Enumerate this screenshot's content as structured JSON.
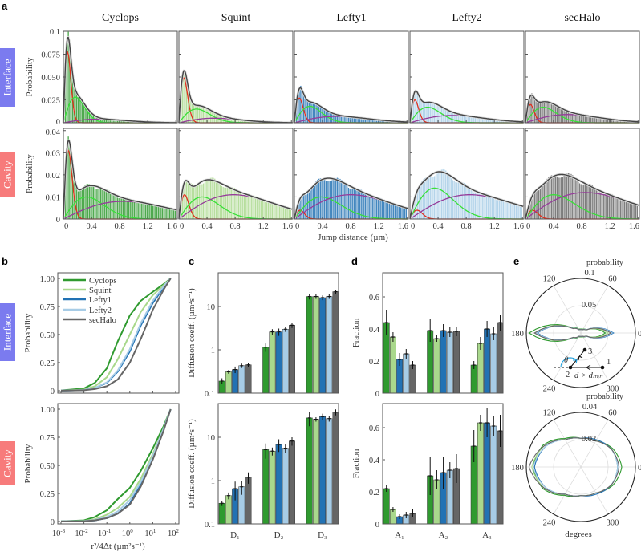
{
  "figure": {
    "panel_labels": {
      "a": "a",
      "b": "b",
      "c": "c",
      "d": "d",
      "e": "e"
    },
    "row_labels": {
      "interface": "Interface",
      "cavity": "Cavity"
    }
  },
  "colors": {
    "Cyclops": "#2f9a2f",
    "Squint": "#a9d88c",
    "Lefty1": "#2272b4",
    "Lefty2": "#a7cce6",
    "secHalo": "#666666",
    "interface_badge": "#7b7bef",
    "cavity_badge": "#f77b7b",
    "component_fast": "#e2301f",
    "component_mid": "#38e038",
    "component_slow": "#953c9a",
    "fit_total": "#444444",
    "angle_marker": "#1aa0e0"
  },
  "chart_data": [
    {
      "panel": "a",
      "type": "bar",
      "subtype": "histogram with 3-component fit",
      "columns": [
        "Cyclops",
        "Squint",
        "Lefty1",
        "Lefty2",
        "secHalo"
      ],
      "xlabel": "Jump distance (µm)",
      "ylabel": "Probability",
      "xlim": [
        0,
        1.62
      ],
      "xticks": [
        "0",
        "0.4",
        "0.8",
        "1.2",
        "1.6"
      ],
      "rows": [
        {
          "label": "Interface",
          "ylim": [
            0,
            0.1
          ],
          "yticks": [
            "0",
            "0.025",
            "0.050",
            "0.075",
            "0.1"
          ],
          "fits": [
            {
              "protein": "Cyclops",
              "components": [
                {
                  "mode": 0.06,
                  "peak": 0.077
                },
                {
                  "mode": 0.17,
                  "peak": 0.028
                },
                {
                  "mode": 0.5,
                  "peak": 0.004
                }
              ]
            },
            {
              "protein": "Squint",
              "components": [
                {
                  "mode": 0.07,
                  "peak": 0.049
                },
                {
                  "mode": 0.25,
                  "peak": 0.015
                },
                {
                  "mode": 0.5,
                  "peak": 0.005
                }
              ]
            },
            {
              "protein": "Lefty1",
              "components": [
                {
                  "mode": 0.07,
                  "peak": 0.027
                },
                {
                  "mode": 0.22,
                  "peak": 0.018
                },
                {
                  "mode": 0.6,
                  "peak": 0.007
                }
              ]
            },
            {
              "protein": "Lefty2",
              "components": [
                {
                  "mode": 0.07,
                  "peak": 0.025
                },
                {
                  "mode": 0.25,
                  "peak": 0.017
                },
                {
                  "mode": 0.6,
                  "peak": 0.008
                }
              ]
            },
            {
              "protein": "secHalo",
              "components": [
                {
                  "mode": 0.07,
                  "peak": 0.02
                },
                {
                  "mode": 0.25,
                  "peak": 0.017
                },
                {
                  "mode": 0.6,
                  "peak": 0.009
                }
              ]
            }
          ]
        },
        {
          "label": "Cavity",
          "ylim": [
            0,
            0.041
          ],
          "yticks": [
            "0",
            "0.01",
            "0.02",
            "0.03",
            "0.04"
          ],
          "fits": [
            {
              "protein": "Cyclops",
              "components": [
                {
                  "mode": 0.07,
                  "peak": 0.031
                },
                {
                  "mode": 0.33,
                  "peak": 0.01
                },
                {
                  "mode": 0.85,
                  "peak": 0.008
                }
              ]
            },
            {
              "protein": "Squint",
              "components": [
                {
                  "mode": 0.08,
                  "peak": 0.011
                },
                {
                  "mode": 0.33,
                  "peak": 0.01
                },
                {
                  "mode": 0.78,
                  "peak": 0.011
                }
              ]
            },
            {
              "protein": "Lefty1",
              "components": [
                {
                  "mode": 0.08,
                  "peak": 0.004
                },
                {
                  "mode": 0.38,
                  "peak": 0.01
                },
                {
                  "mode": 0.8,
                  "peak": 0.011
                }
              ]
            },
            {
              "protein": "Lefty2",
              "components": [
                {
                  "mode": 0.1,
                  "peak": 0.004
                },
                {
                  "mode": 0.35,
                  "peak": 0.014
                },
                {
                  "mode": 0.85,
                  "peak": 0.011
                }
              ]
            },
            {
              "protein": "secHalo",
              "components": [
                {
                  "mode": 0.1,
                  "peak": 0.004
                },
                {
                  "mode": 0.4,
                  "peak": 0.011
                },
                {
                  "mode": 0.85,
                  "peak": 0.012
                }
              ]
            }
          ]
        }
      ]
    },
    {
      "panel": "b",
      "type": "line",
      "xscale": "log",
      "xlim": [
        0.001,
        100
      ],
      "xticks": [
        0.001,
        0.01,
        0.1,
        1,
        10,
        100
      ],
      "xlabel": "r²/4Δt (µm²s⁻¹)",
      "ylabel": "Probability",
      "ylim": [
        0,
        1
      ],
      "yticks": [
        "0",
        "0.25",
        "0.50",
        "0.75",
        "1.00"
      ],
      "legend": "top-left",
      "x": [
        0.001,
        0.01,
        0.03,
        0.1,
        0.3,
        1,
        3,
        10,
        30,
        60
      ],
      "rows": [
        {
          "label": "Interface",
          "series": [
            {
              "name": "Cyclops",
              "values": [
                0.003,
                0.02,
                0.07,
                0.2,
                0.44,
                0.67,
                0.8,
                0.88,
                0.95,
                1
              ]
            },
            {
              "name": "Squint",
              "values": [
                0.002,
                0.01,
                0.04,
                0.12,
                0.28,
                0.5,
                0.7,
                0.85,
                0.94,
                1
              ]
            },
            {
              "name": "Lefty1",
              "values": [
                0.001,
                0.006,
                0.025,
                0.07,
                0.17,
                0.35,
                0.58,
                0.78,
                0.92,
                1
              ]
            },
            {
              "name": "Lefty2",
              "values": [
                0.001,
                0.006,
                0.025,
                0.075,
                0.18,
                0.37,
                0.6,
                0.8,
                0.93,
                1
              ]
            },
            {
              "name": "secHalo",
              "values": [
                0.001,
                0.004,
                0.015,
                0.04,
                0.1,
                0.25,
                0.46,
                0.72,
                0.9,
                1
              ]
            }
          ]
        },
        {
          "label": "Cavity",
          "series": [
            {
              "name": "Cyclops",
              "values": [
                0.002,
                0.01,
                0.04,
                0.1,
                0.2,
                0.3,
                0.45,
                0.65,
                0.85,
                1
              ]
            },
            {
              "name": "Squint",
              "values": [
                0.001,
                0.005,
                0.02,
                0.06,
                0.12,
                0.22,
                0.38,
                0.6,
                0.83,
                1
              ]
            },
            {
              "name": "Lefty1",
              "values": [
                0.001,
                0.003,
                0.01,
                0.03,
                0.07,
                0.16,
                0.33,
                0.57,
                0.82,
                1
              ]
            },
            {
              "name": "Lefty2",
              "values": [
                0.001,
                0.004,
                0.013,
                0.04,
                0.09,
                0.19,
                0.35,
                0.58,
                0.83,
                1
              ]
            },
            {
              "name": "secHalo",
              "values": [
                0.001,
                0.003,
                0.01,
                0.03,
                0.07,
                0.15,
                0.31,
                0.55,
                0.81,
                1
              ]
            }
          ]
        }
      ]
    },
    {
      "panel": "c",
      "type": "bar",
      "yscale": "log",
      "ylim": [
        0.1,
        60
      ],
      "yticks": [
        "0.1",
        "1",
        "10"
      ],
      "ylabel": "Diffusion coeff. (µm²s⁻¹)",
      "categories": [
        "D₁",
        "D₂",
        "D₃"
      ],
      "series_names": [
        "Cyclops",
        "Squint",
        "Lefty1",
        "Lefty2",
        "secHalo"
      ],
      "rows": [
        {
          "label": "Interface",
          "values": [
            [
              0.19,
              0.31,
              0.35,
              0.43,
              0.45
            ],
            [
              1.15,
              2.6,
              2.6,
              3.0,
              3.7
            ],
            [
              17,
              17,
              16,
              17,
              22
            ]
          ],
          "errors": [
            [
              0.03,
              0.03,
              0.06,
              0.05,
              0.05
            ],
            [
              0.25,
              0.4,
              0.5,
              0.4,
              0.5
            ],
            [
              2.5,
              2,
              2,
              2,
              2.5
            ]
          ]
        },
        {
          "label": "Cavity",
          "values": [
            [
              0.3,
              0.45,
              0.65,
              0.72,
              1.2
            ],
            [
              5.2,
              4.8,
              6.8,
              5.6,
              8.2
            ],
            [
              28,
              26,
              30,
              27,
              38
            ]
          ],
          "errors": [
            [
              0.04,
              0.08,
              0.3,
              0.25,
              0.35
            ],
            [
              2,
              1,
              2.2,
              1.2,
              1.8
            ],
            [
              10,
              3,
              5,
              4,
              6
            ]
          ]
        }
      ]
    },
    {
      "panel": "d",
      "type": "bar",
      "ylim": [
        0,
        0.75
      ],
      "yticks": [
        "0",
        "0.2",
        "0.4",
        "0.6"
      ],
      "ylabel": "Fraction",
      "categories": [
        "A₁",
        "A₂",
        "A₃"
      ],
      "series_names": [
        "Cyclops",
        "Squint",
        "Lefty1",
        "Lefty2",
        "secHalo"
      ],
      "rows": [
        {
          "label": "Interface",
          "values": [
            [
              0.44,
              0.35,
              0.21,
              0.245,
              0.175
            ],
            [
              0.39,
              0.34,
              0.39,
              0.38,
              0.385
            ],
            [
              0.175,
              0.31,
              0.4,
              0.37,
              0.44
            ]
          ],
          "errors": [
            [
              0.08,
              0.03,
              0.04,
              0.03,
              0.025
            ],
            [
              0.07,
              0.02,
              0.04,
              0.03,
              0.03
            ],
            [
              0.025,
              0.04,
              0.05,
              0.04,
              0.05
            ]
          ]
        },
        {
          "label": "Cavity",
          "values": [
            [
              0.22,
              0.09,
              0.045,
              0.055,
              0.065
            ],
            [
              0.3,
              0.275,
              0.32,
              0.335,
              0.345
            ],
            [
              0.485,
              0.63,
              0.63,
              0.61,
              0.58
            ]
          ],
          "errors": [
            [
              0.02,
              0.015,
              0.015,
              0.02,
              0.025
            ],
            [
              0.12,
              0.06,
              0.1,
              0.05,
              0.09
            ],
            [
              0.1,
              0.05,
              0.09,
              0.06,
              0.1
            ]
          ]
        }
      ]
    },
    {
      "panel": "e",
      "type": "polar",
      "angle_label": "degrees",
      "angle_ticks": [
        "0",
        "60",
        "120",
        "180",
        "240",
        "300"
      ],
      "angles": [
        0,
        30,
        60,
        90,
        120,
        150,
        180,
        210,
        240,
        270,
        300,
        330
      ],
      "rows": [
        {
          "label": "Interface",
          "radial_label": "probability",
          "rmax": 0.1,
          "rticks": [
            "0.05",
            "0.1"
          ],
          "series": [
            {
              "name": "Cyclops",
              "values": [
                0.045,
                0.012,
                0.008,
                0.007,
                0.008,
                0.02,
                0.095,
                0.02,
                0.008,
                0.007,
                0.008,
                0.012
              ]
            },
            {
              "name": "Squint",
              "values": [
                0.05,
                0.011,
                0.007,
                0.006,
                0.007,
                0.018,
                0.085,
                0.018,
                0.007,
                0.006,
                0.007,
                0.011
              ]
            },
            {
              "name": "Lefty1",
              "values": [
                0.06,
                0.012,
                0.007,
                0.006,
                0.007,
                0.017,
                0.08,
                0.017,
                0.007,
                0.006,
                0.007,
                0.012
              ]
            },
            {
              "name": "Lefty2",
              "values": [
                0.058,
                0.012,
                0.007,
                0.006,
                0.007,
                0.017,
                0.082,
                0.017,
                0.007,
                0.006,
                0.007,
                0.012
              ]
            },
            {
              "name": "secHalo",
              "values": [
                0.055,
                0.011,
                0.007,
                0.006,
                0.007,
                0.016,
                0.085,
                0.016,
                0.007,
                0.006,
                0.007,
                0.011
              ]
            }
          ],
          "inset": {
            "point_1": "1",
            "point_2": "2",
            "point_3": "3",
            "angle": "θ",
            "condition": "d > dₘᵢₙ"
          }
        },
        {
          "label": "Cavity",
          "radial_label": "probability",
          "rmax": 0.04,
          "rticks": [
            "0.02",
            "0.04"
          ],
          "series": [
            {
              "name": "Cyclops",
              "values": [
                0.03,
                0.027,
                0.022,
                0.021,
                0.024,
                0.032,
                0.035,
                0.032,
                0.024,
                0.021,
                0.022,
                0.027
              ]
            },
            {
              "name": "Squint",
              "values": [
                0.027,
                0.026,
                0.022,
                0.021,
                0.023,
                0.031,
                0.036,
                0.031,
                0.023,
                0.021,
                0.022,
                0.026
              ]
            },
            {
              "name": "Lefty1",
              "values": [
                0.027,
                0.026,
                0.023,
                0.021,
                0.023,
                0.03,
                0.034,
                0.03,
                0.023,
                0.021,
                0.023,
                0.026
              ]
            },
            {
              "name": "Lefty2",
              "values": [
                0.027,
                0.026,
                0.022,
                0.021,
                0.023,
                0.03,
                0.035,
                0.03,
                0.023,
                0.021,
                0.022,
                0.026
              ]
            },
            {
              "name": "secHalo",
              "values": [
                0.028,
                0.026,
                0.022,
                0.021,
                0.023,
                0.031,
                0.038,
                0.031,
                0.023,
                0.021,
                0.022,
                0.026
              ]
            }
          ]
        }
      ]
    }
  ]
}
